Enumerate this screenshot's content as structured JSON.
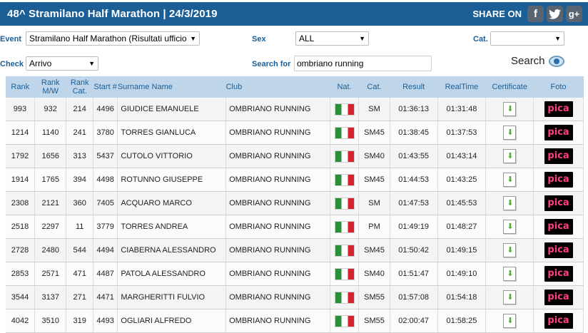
{
  "header": {
    "title": "48^ Stramilano Half Marathon  |  24/3/2019",
    "share_label": "SHARE ON",
    "social": [
      {
        "name": "facebook-icon",
        "glyph": "f"
      },
      {
        "name": "twitter-icon",
        "glyph": "t"
      },
      {
        "name": "googleplus-icon",
        "glyph": "g+"
      }
    ]
  },
  "filters": {
    "event_label": "Event",
    "event_value": "Stramilano Half Marathon (Risultati ufficiosi)",
    "sex_label": "Sex",
    "sex_value": "ALL",
    "cat_label": "Cat.",
    "cat_value": "",
    "check_label": "Check",
    "check_value": "Arrivo",
    "search_label": "Search for",
    "search_value": "ombriano running",
    "search_button": "Search"
  },
  "table": {
    "headers": [
      "Rank",
      "Rank M/W",
      "Rank Cat.",
      "Start #",
      "Surname Name",
      "Club",
      "Nat.",
      "Cat.",
      "Result",
      "RealTime",
      "Certificate",
      "Foto"
    ],
    "photo_label": "pica",
    "rows": [
      {
        "rank": "993",
        "rank_mw": "932",
        "rank_cat": "214",
        "start": "4496",
        "name": "GIUDICE EMANUELE",
        "club": "OMBRIANO RUNNING",
        "cat": "SM",
        "result": "01:36:13",
        "realtime": "01:31:48"
      },
      {
        "rank": "1214",
        "rank_mw": "1140",
        "rank_cat": "241",
        "start": "3780",
        "name": "TORRES GIANLUCA",
        "club": "OMBRIANO RUNNING",
        "cat": "SM45",
        "result": "01:38:45",
        "realtime": "01:37:53"
      },
      {
        "rank": "1792",
        "rank_mw": "1656",
        "rank_cat": "313",
        "start": "5437",
        "name": "CUTOLO VITTORIO",
        "club": "OMBRIANO RUNNING",
        "cat": "SM40",
        "result": "01:43:55",
        "realtime": "01:43:14"
      },
      {
        "rank": "1914",
        "rank_mw": "1765",
        "rank_cat": "394",
        "start": "4498",
        "name": "ROTUNNO GIUSEPPE",
        "club": "OMBRIANO RUNNING",
        "cat": "SM45",
        "result": "01:44:53",
        "realtime": "01:43:25"
      },
      {
        "rank": "2308",
        "rank_mw": "2121",
        "rank_cat": "360",
        "start": "7405",
        "name": "ACQUARO MARCO",
        "club": "OMBRIANO RUNNING",
        "cat": "SM",
        "result": "01:47:53",
        "realtime": "01:45:53"
      },
      {
        "rank": "2518",
        "rank_mw": "2297",
        "rank_cat": "11",
        "start": "3779",
        "name": "TORRES ANDREA",
        "club": "OMBRIANO RUNNING",
        "cat": "PM",
        "result": "01:49:19",
        "realtime": "01:48:27"
      },
      {
        "rank": "2728",
        "rank_mw": "2480",
        "rank_cat": "544",
        "start": "4494",
        "name": "CIABERNA ALESSANDRO",
        "club": "OMBRIANO RUNNING",
        "cat": "SM45",
        "result": "01:50:42",
        "realtime": "01:49:15"
      },
      {
        "rank": "2853",
        "rank_mw": "2571",
        "rank_cat": "471",
        "start": "4487",
        "name": "PATOLA ALESSANDRO",
        "club": "OMBRIANO RUNNING",
        "cat": "SM40",
        "result": "01:51:47",
        "realtime": "01:49:10"
      },
      {
        "rank": "3544",
        "rank_mw": "3137",
        "rank_cat": "271",
        "start": "4471",
        "name": "MARGHERITTI FULVIO",
        "club": "OMBRIANO RUNNING",
        "cat": "SM55",
        "result": "01:57:08",
        "realtime": "01:54:18"
      },
      {
        "rank": "4042",
        "rank_mw": "3510",
        "rank_cat": "319",
        "start": "4493",
        "name": "OGLIARI ALFREDO",
        "club": "OMBRIANO RUNNING",
        "cat": "SM55",
        "result": "02:00:47",
        "realtime": "01:58:25"
      }
    ]
  }
}
